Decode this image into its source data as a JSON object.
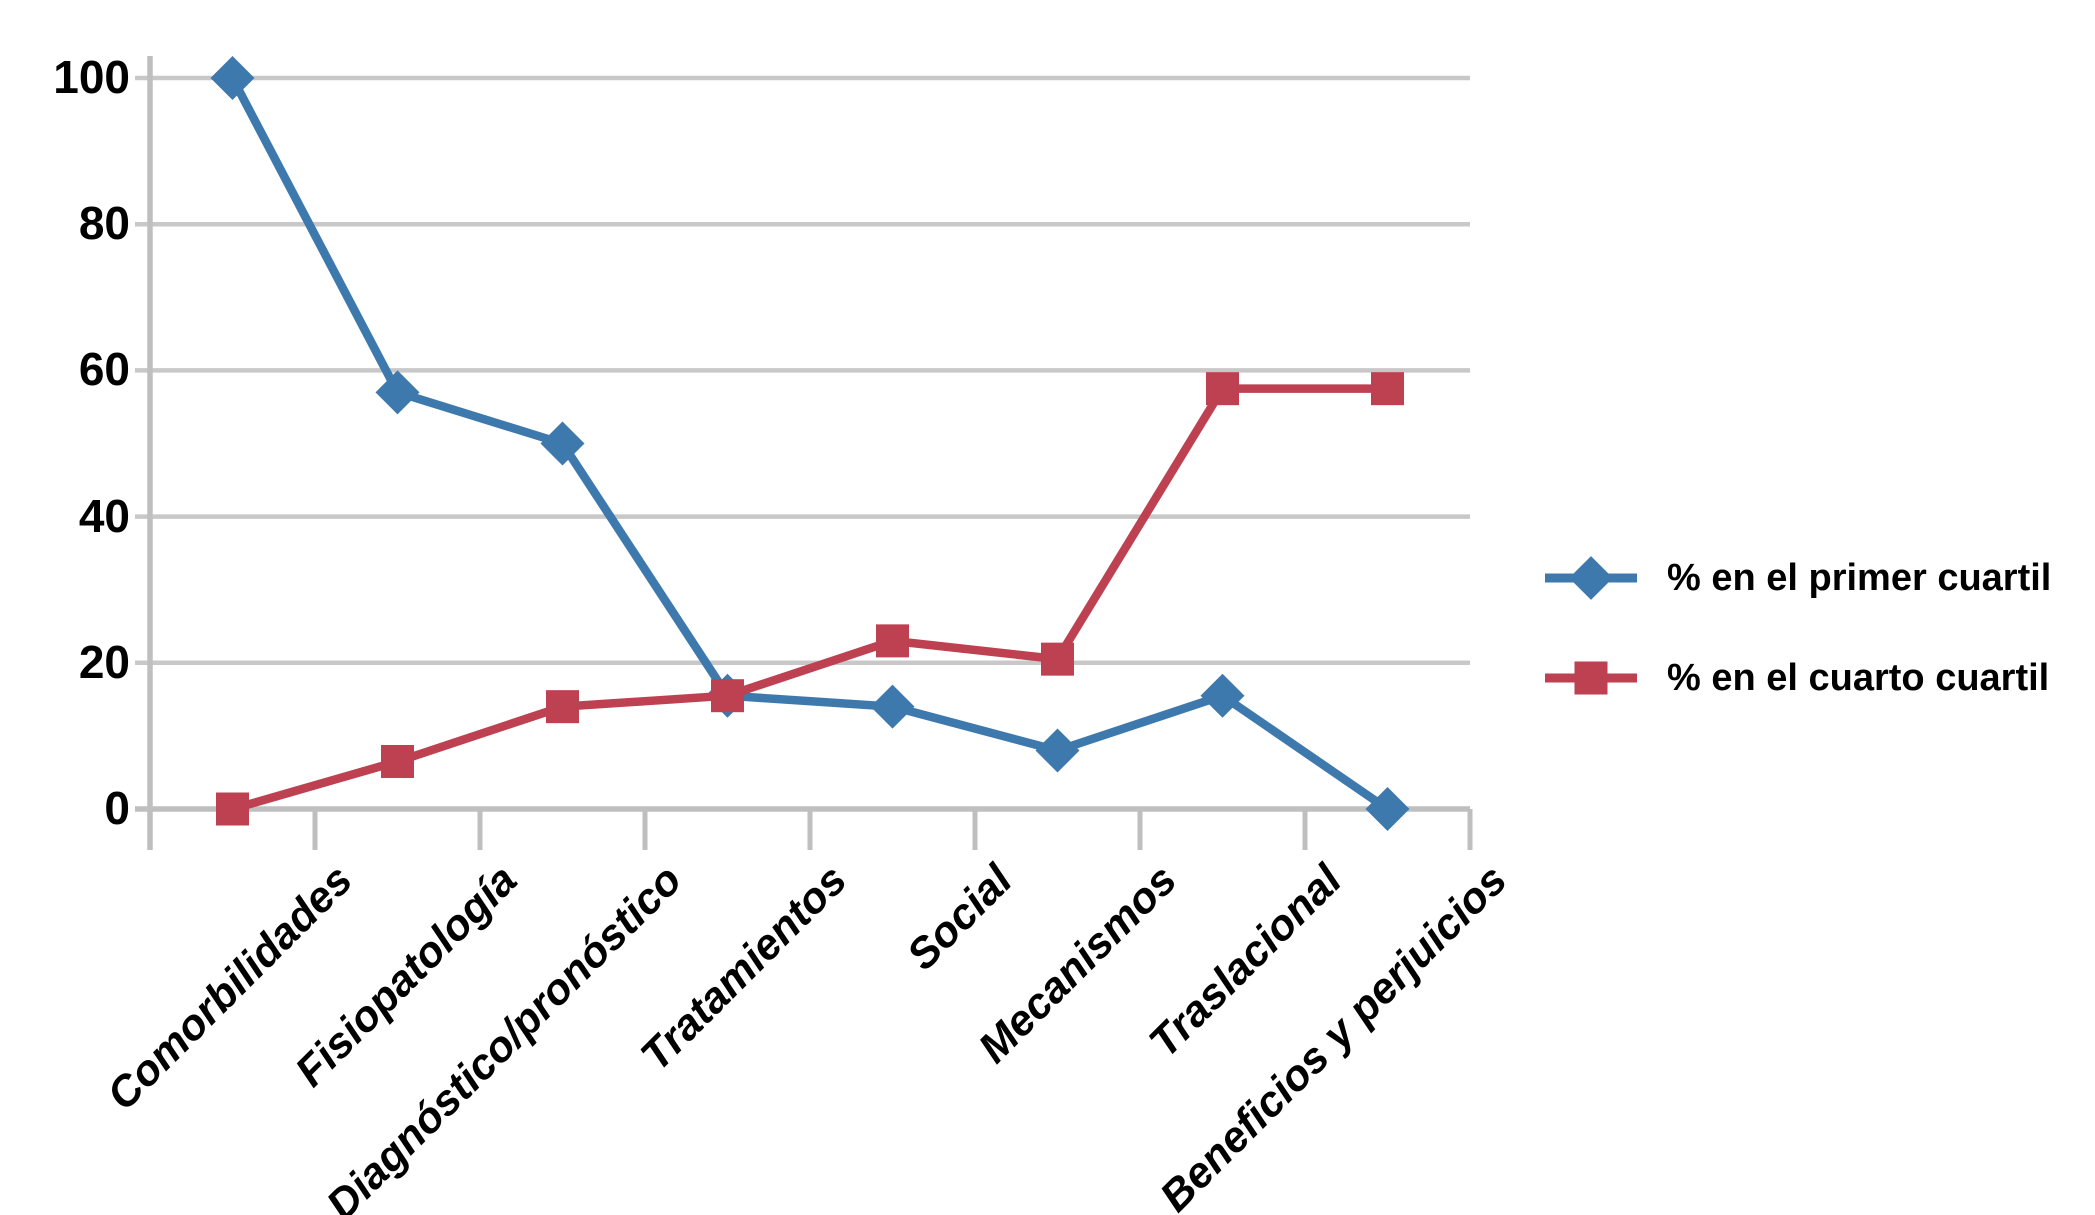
{
  "figure": {
    "background": "#ffffff",
    "text_color": "#000000"
  },
  "chart_data": {
    "type": "line",
    "title": "",
    "xlabel": "",
    "ylabel": "",
    "categories": [
      "Comorbilidades",
      "Fisiopatología",
      "Diagnóstico/pronóstico",
      "Tratamientos",
      "Social",
      "Mecanismos",
      "Traslacional",
      "Beneficios y perjuicios"
    ],
    "series": [
      {
        "name": "% en el primer cuartil",
        "marker": "diamond",
        "color": "#3E79AE",
        "values": [
          100,
          57,
          50,
          15.5,
          14,
          8,
          15.5,
          0
        ]
      },
      {
        "name": "% en el cuarto cuartil",
        "marker": "square",
        "color": "#BE4151",
        "values": [
          0,
          6.5,
          14,
          15.5,
          23,
          20.5,
          57.5,
          57.5
        ]
      }
    ],
    "y_axis": {
      "min": 0,
      "max": 100,
      "ticks": [
        0,
        20,
        40,
        60,
        80,
        100
      ]
    },
    "x_axis": {
      "label_rotation_deg": -45
    },
    "grid": "horizontal",
    "gridline_color": "#C8C8C8",
    "axis_color": "#BFBFBF",
    "legend_position": "right"
  }
}
